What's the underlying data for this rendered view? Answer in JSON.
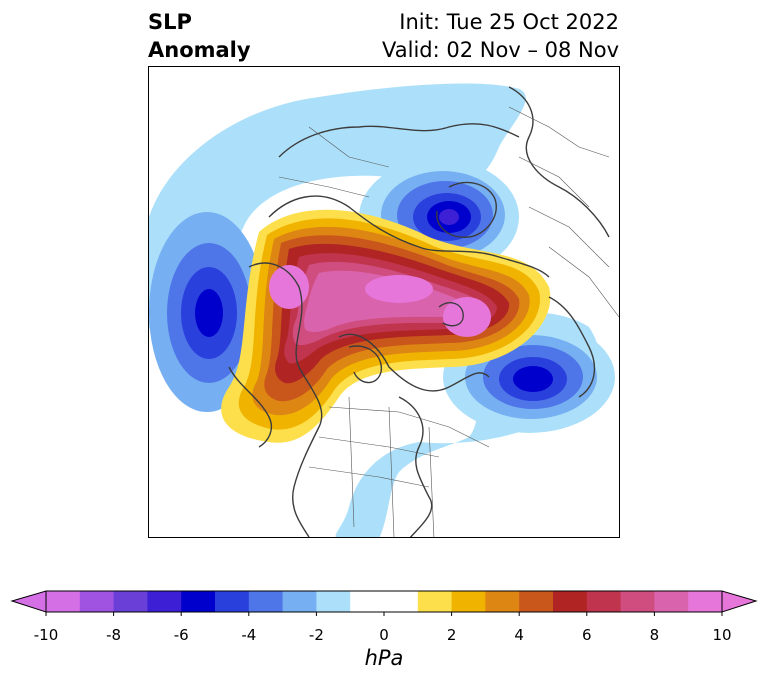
{
  "title": {
    "left_line1": "SLP",
    "left_line2": "Anomaly",
    "right_line1": "Init: Tue 25 Oct 2022",
    "right_line2": "Valid: 02 Nov – 08 Nov"
  },
  "colorbar": {
    "unit": "hPa",
    "ticks": [
      "-10",
      "-8",
      "-6",
      "-4",
      "-2",
      "0",
      "2",
      "4",
      "6",
      "8",
      "10"
    ],
    "extend": "both",
    "bins": [
      {
        "from": -10,
        "to": -9,
        "color": "#d46fe6"
      },
      {
        "from": -9,
        "to": -8,
        "color": "#a052e0"
      },
      {
        "from": -8,
        "to": -7,
        "color": "#6a3fd8"
      },
      {
        "from": -7,
        "to": -6,
        "color": "#3d1fd6"
      },
      {
        "from": -6,
        "to": -5,
        "color": "#0000cd"
      },
      {
        "from": -5,
        "to": -4,
        "color": "#2a40dc"
      },
      {
        "from": -4,
        "to": -3,
        "color": "#4f76e8"
      },
      {
        "from": -3,
        "to": -2,
        "color": "#77b0f2"
      },
      {
        "from": -2,
        "to": -1,
        "color": "#ace0fa"
      },
      {
        "from": -1,
        "to": 1,
        "color": "#ffffff"
      },
      {
        "from": 1,
        "to": 2,
        "color": "#fcdf4a"
      },
      {
        "from": 2,
        "to": 3,
        "color": "#f0b400"
      },
      {
        "from": 3,
        "to": 4,
        "color": "#de8614"
      },
      {
        "from": 4,
        "to": 5,
        "color": "#c9561b"
      },
      {
        "from": 5,
        "to": 6,
        "color": "#b02424"
      },
      {
        "from": 6,
        "to": 7,
        "color": "#c0344e"
      },
      {
        "from": 7,
        "to": 8,
        "color": "#cf4e7f"
      },
      {
        "from": 8,
        "to": 9,
        "color": "#da63ad"
      },
      {
        "from": 9,
        "to": 10,
        "color": "#e676da"
      }
    ],
    "under_color": "#d46fe6",
    "over_color": "#e676da"
  },
  "map": {
    "projection": "north-polar-stereographic",
    "anomalies": [
      {
        "name": "positive-anomaly-arctic-ridge",
        "peak_hpa": 10
      },
      {
        "name": "negative-anomaly-scandinavia",
        "peak_hpa": -7
      },
      {
        "name": "negative-anomaly-north-pacific",
        "peak_hpa": -6
      },
      {
        "name": "negative-anomaly-north-atlantic",
        "peak_hpa": -6
      }
    ]
  }
}
